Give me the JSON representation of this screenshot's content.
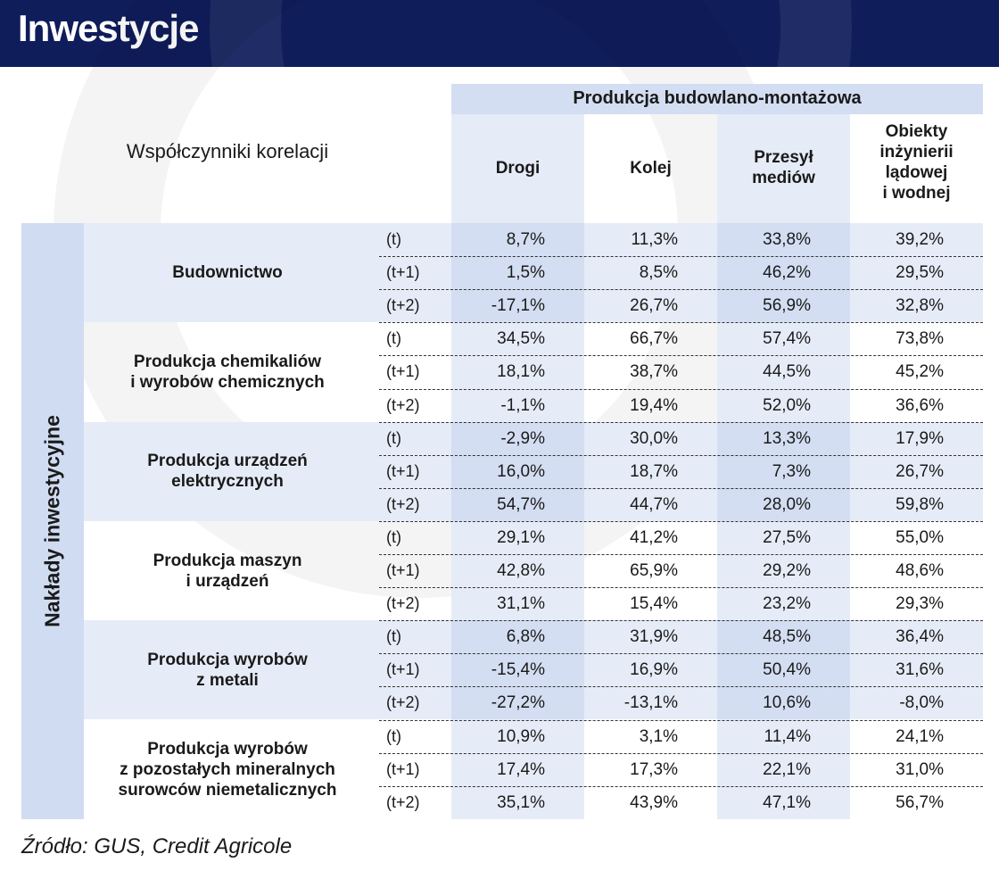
{
  "title": "Inwestycje",
  "table": {
    "corner_label": "Współczynniki korelacji",
    "group_header": "Produkcja budowlano-montażowa",
    "columns": [
      "Drogi",
      "Kolej",
      "Przesył\nmediów",
      "Obiekty\ninżynierii\nlądowej\ni wodnej"
    ],
    "side_label": "Nakłady inwestycyjne",
    "groups": [
      {
        "label": "Budownictwo",
        "rows": [
          {
            "lag": "(t)",
            "values": [
              "8,7%",
              "11,3%",
              "33,8%",
              "39,2%"
            ]
          },
          {
            "lag": "(t+1)",
            "values": [
              "1,5%",
              "8,5%",
              "46,2%",
              "29,5%"
            ]
          },
          {
            "lag": "(t+2)",
            "values": [
              "-17,1%",
              "26,7%",
              "56,9%",
              "32,8%"
            ]
          }
        ]
      },
      {
        "label": "Produkcja chemikaliów\ni wyrobów chemicznych",
        "rows": [
          {
            "lag": "(t)",
            "values": [
              "34,5%",
              "66,7%",
              "57,4%",
              "73,8%"
            ]
          },
          {
            "lag": "(t+1)",
            "values": [
              "18,1%",
              "38,7%",
              "44,5%",
              "45,2%"
            ]
          },
          {
            "lag": "(t+2)",
            "values": [
              "-1,1%",
              "19,4%",
              "52,0%",
              "36,6%"
            ]
          }
        ]
      },
      {
        "label": "Produkcja urządzeń\nelektrycznych",
        "rows": [
          {
            "lag": "(t)",
            "values": [
              "-2,9%",
              "30,0%",
              "13,3%",
              "17,9%"
            ]
          },
          {
            "lag": "(t+1)",
            "values": [
              "16,0%",
              "18,7%",
              "7,3%",
              "26,7%"
            ]
          },
          {
            "lag": "(t+2)",
            "values": [
              "54,7%",
              "44,7%",
              "28,0%",
              "59,8%"
            ]
          }
        ]
      },
      {
        "label": "Produkcja maszyn\ni urządzeń",
        "rows": [
          {
            "lag": "(t)",
            "values": [
              "29,1%",
              "41,2%",
              "27,5%",
              "55,0%"
            ]
          },
          {
            "lag": "(t+1)",
            "values": [
              "42,8%",
              "65,9%",
              "29,2%",
              "48,6%"
            ]
          },
          {
            "lag": "(t+2)",
            "values": [
              "31,1%",
              "15,4%",
              "23,2%",
              "29,3%"
            ]
          }
        ]
      },
      {
        "label": "Produkcja wyrobów\nz metali",
        "rows": [
          {
            "lag": "(t)",
            "values": [
              "6,8%",
              "31,9%",
              "48,5%",
              "36,4%"
            ]
          },
          {
            "lag": "(t+1)",
            "values": [
              "-15,4%",
              "16,9%",
              "50,4%",
              "31,6%"
            ]
          },
          {
            "lag": "(t+2)",
            "values": [
              "-27,2%",
              "-13,1%",
              "10,6%",
              "-8,0%"
            ]
          }
        ]
      },
      {
        "label": "Produkcja wyrobów\nz pozostałych mineralnych\nsurowców niemetalicznych",
        "rows": [
          {
            "lag": "(t)",
            "values": [
              "10,9%",
              "3,1%",
              "11,4%",
              "24,1%"
            ]
          },
          {
            "lag": "(t+1)",
            "values": [
              "17,4%",
              "17,3%",
              "22,1%",
              "31,0%"
            ]
          },
          {
            "lag": "(t+2)",
            "values": [
              "35,1%",
              "43,9%",
              "47,1%",
              "56,7%"
            ]
          }
        ]
      }
    ]
  },
  "source": "Źródło: GUS, Credit Agricole"
}
